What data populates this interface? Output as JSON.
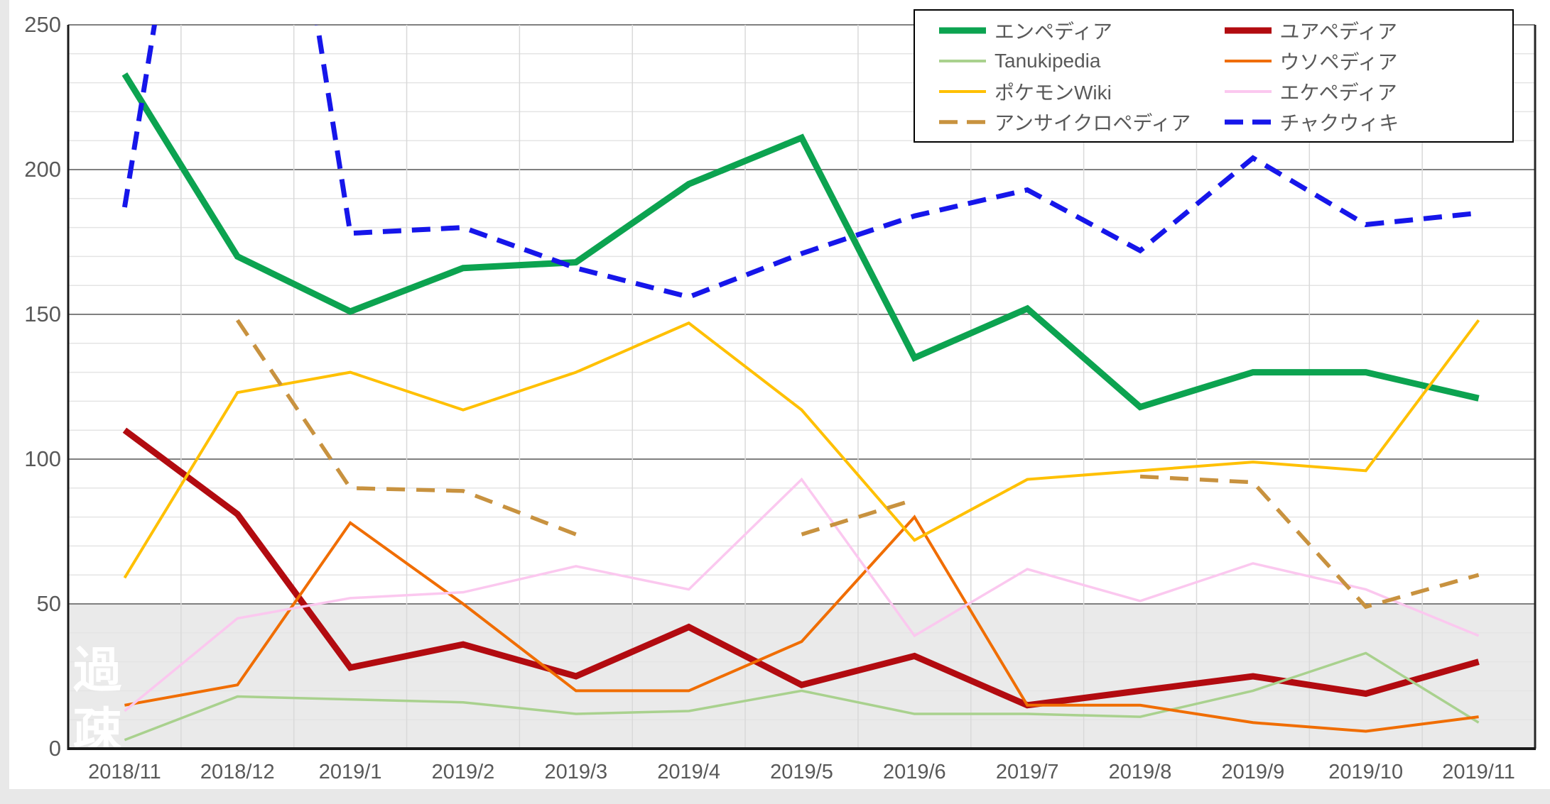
{
  "page": {
    "background": "#ffffff",
    "margin_strip_color": "#e8e8e8"
  },
  "legend": {
    "position": "top-right",
    "border_color": "#000000",
    "background": "#ffffff",
    "columns": 2
  },
  "annotation": {
    "kaso_label": "過疎",
    "kaso_color": "#ffffff",
    "band_from": 0,
    "band_to": 50,
    "band_color": "#eaeaea"
  },
  "axes": {
    "y_ticks": [
      "0",
      "50",
      "100",
      "150",
      "200",
      "250"
    ],
    "grid_major_color": "#808080",
    "grid_minor_color": "#e4e4e4",
    "grid_vertical_color": "#d9d9d9",
    "axis_color": "#1a1a1a",
    "label_color": "#595959"
  },
  "chart_data": {
    "type": "line",
    "title": "",
    "xlabel": "",
    "ylabel": "",
    "ylim": [
      0,
      250
    ],
    "y_major_step": 50,
    "y_minor_step": 10,
    "legend_position": "top-right",
    "grid": true,
    "x": [
      "2018/11",
      "2018/12",
      "2019/1",
      "2019/2",
      "2019/3",
      "2019/4",
      "2019/5",
      "2019/6",
      "2019/7",
      "2019/8",
      "2019/9",
      "2019/10",
      "2019/11"
    ],
    "series": [
      {
        "id": "empedia",
        "name": "エンペディア",
        "color": "#0ca350",
        "width": 9,
        "dash": null,
        "values": [
          233,
          170,
          151,
          166,
          168,
          195,
          211,
          135,
          152,
          118,
          130,
          130,
          121
        ]
      },
      {
        "id": "yourpedia",
        "name": "ユアペディア",
        "color": "#b20b10",
        "width": 9,
        "dash": null,
        "values": [
          110,
          81,
          28,
          36,
          25,
          42,
          22,
          32,
          15,
          20,
          25,
          19,
          30
        ]
      },
      {
        "id": "tanukipedia",
        "name": "Tanukipedia",
        "color": "#a9d18e",
        "width": 3.5,
        "dash": null,
        "values": [
          3,
          18,
          17,
          16,
          12,
          13,
          20,
          12,
          12,
          11,
          20,
          33,
          9
        ]
      },
      {
        "id": "usopedia",
        "name": "ウソペディア",
        "color": "#f06d00",
        "width": 4,
        "dash": null,
        "values": [
          15,
          22,
          78,
          50,
          20,
          20,
          37,
          80,
          15,
          15,
          9,
          6,
          11
        ]
      },
      {
        "id": "pokemon-wiki",
        "name": "ポケモンWiki",
        "color": "#ffc000",
        "width": 4,
        "dash": null,
        "values": [
          59,
          123,
          130,
          117,
          130,
          147,
          117,
          72,
          93,
          96,
          99,
          96,
          148
        ]
      },
      {
        "id": "ekepedia",
        "name": "エケペディア",
        "color": "#fbc8ef",
        "width": 3.5,
        "dash": null,
        "values": [
          13,
          45,
          52,
          54,
          63,
          55,
          93,
          39,
          62,
          51,
          64,
          55,
          39
        ]
      },
      {
        "id": "uncyclopedia",
        "name": "アンサイクロペディア",
        "color": "#c8923f",
        "width": 5.5,
        "dash": [
          26,
          16
        ],
        "values": [
          null,
          148,
          90,
          89,
          74,
          null,
          74,
          86,
          null,
          94,
          92,
          49,
          60
        ]
      },
      {
        "id": "chakuwiki",
        "name": "チャクウィキ",
        "color": "#1616ea",
        "width": 7,
        "dash": [
          26,
          15
        ],
        "values": [
          187,
          425,
          178,
          180,
          166,
          156,
          171,
          184,
          193,
          172,
          204,
          181,
          185
        ],
        "note": "2018/12 value exceeds the 250 axis maximum and is clipped by the plot area"
      }
    ],
    "shaded_band": {
      "from": 0,
      "to": 50,
      "label": "過疎"
    }
  }
}
